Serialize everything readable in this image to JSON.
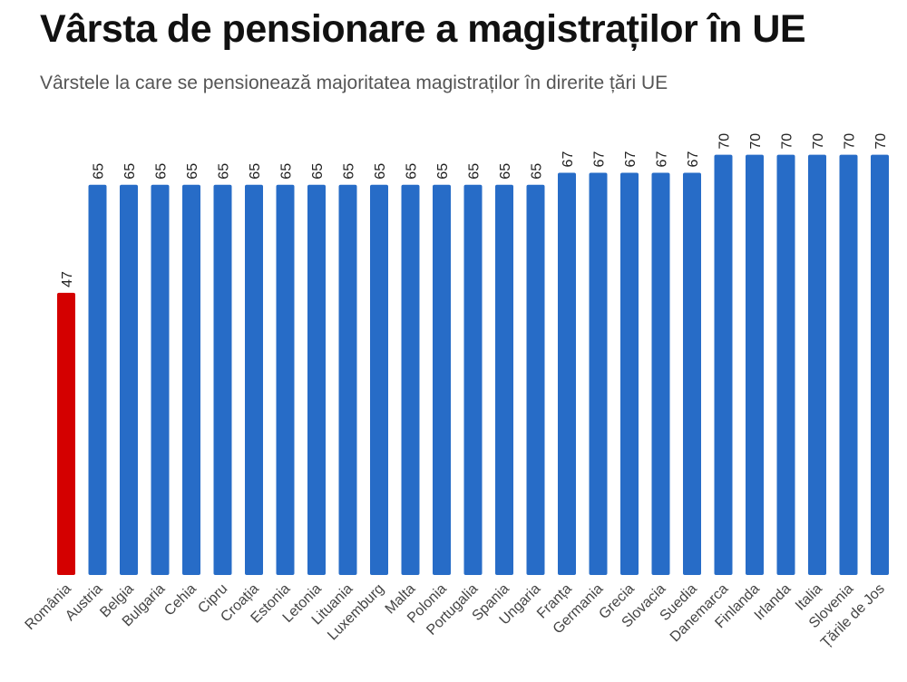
{
  "chart_data": {
    "type": "bar",
    "title": "Vârsta de pensionare a magistraților în UE",
    "subtitle": "Vârstele la care se pensionează majoritatea magistraților în dirérite țări UE",
    "categories": [
      "România",
      "Austria",
      "Belgia",
      "Bulgaria",
      "Cehia",
      "Cipru",
      "Croația",
      "Estonia",
      "Letonia",
      "Lituania",
      "Luxemburg",
      "Malta",
      "Polonia",
      "Portugalia",
      "Spania",
      "Ungaria",
      "Franța",
      "Germania",
      "Grecia",
      "Slovacia",
      "Suedia",
      "Danemarca",
      "Finlanda",
      "Irlanda",
      "Italia",
      "Slovenia",
      "Țările de Jos"
    ],
    "values": [
      47,
      65,
      65,
      65,
      65,
      65,
      65,
      65,
      65,
      65,
      65,
      65,
      65,
      65,
      65,
      65,
      67,
      67,
      67,
      67,
      67,
      70,
      70,
      70,
      70,
      70,
      70
    ],
    "highlight": "România",
    "colors": {
      "default": "#276CC7",
      "highlight": "#D40000"
    },
    "ylim": [
      0,
      70
    ],
    "grid": false,
    "data_labels": true
  }
}
